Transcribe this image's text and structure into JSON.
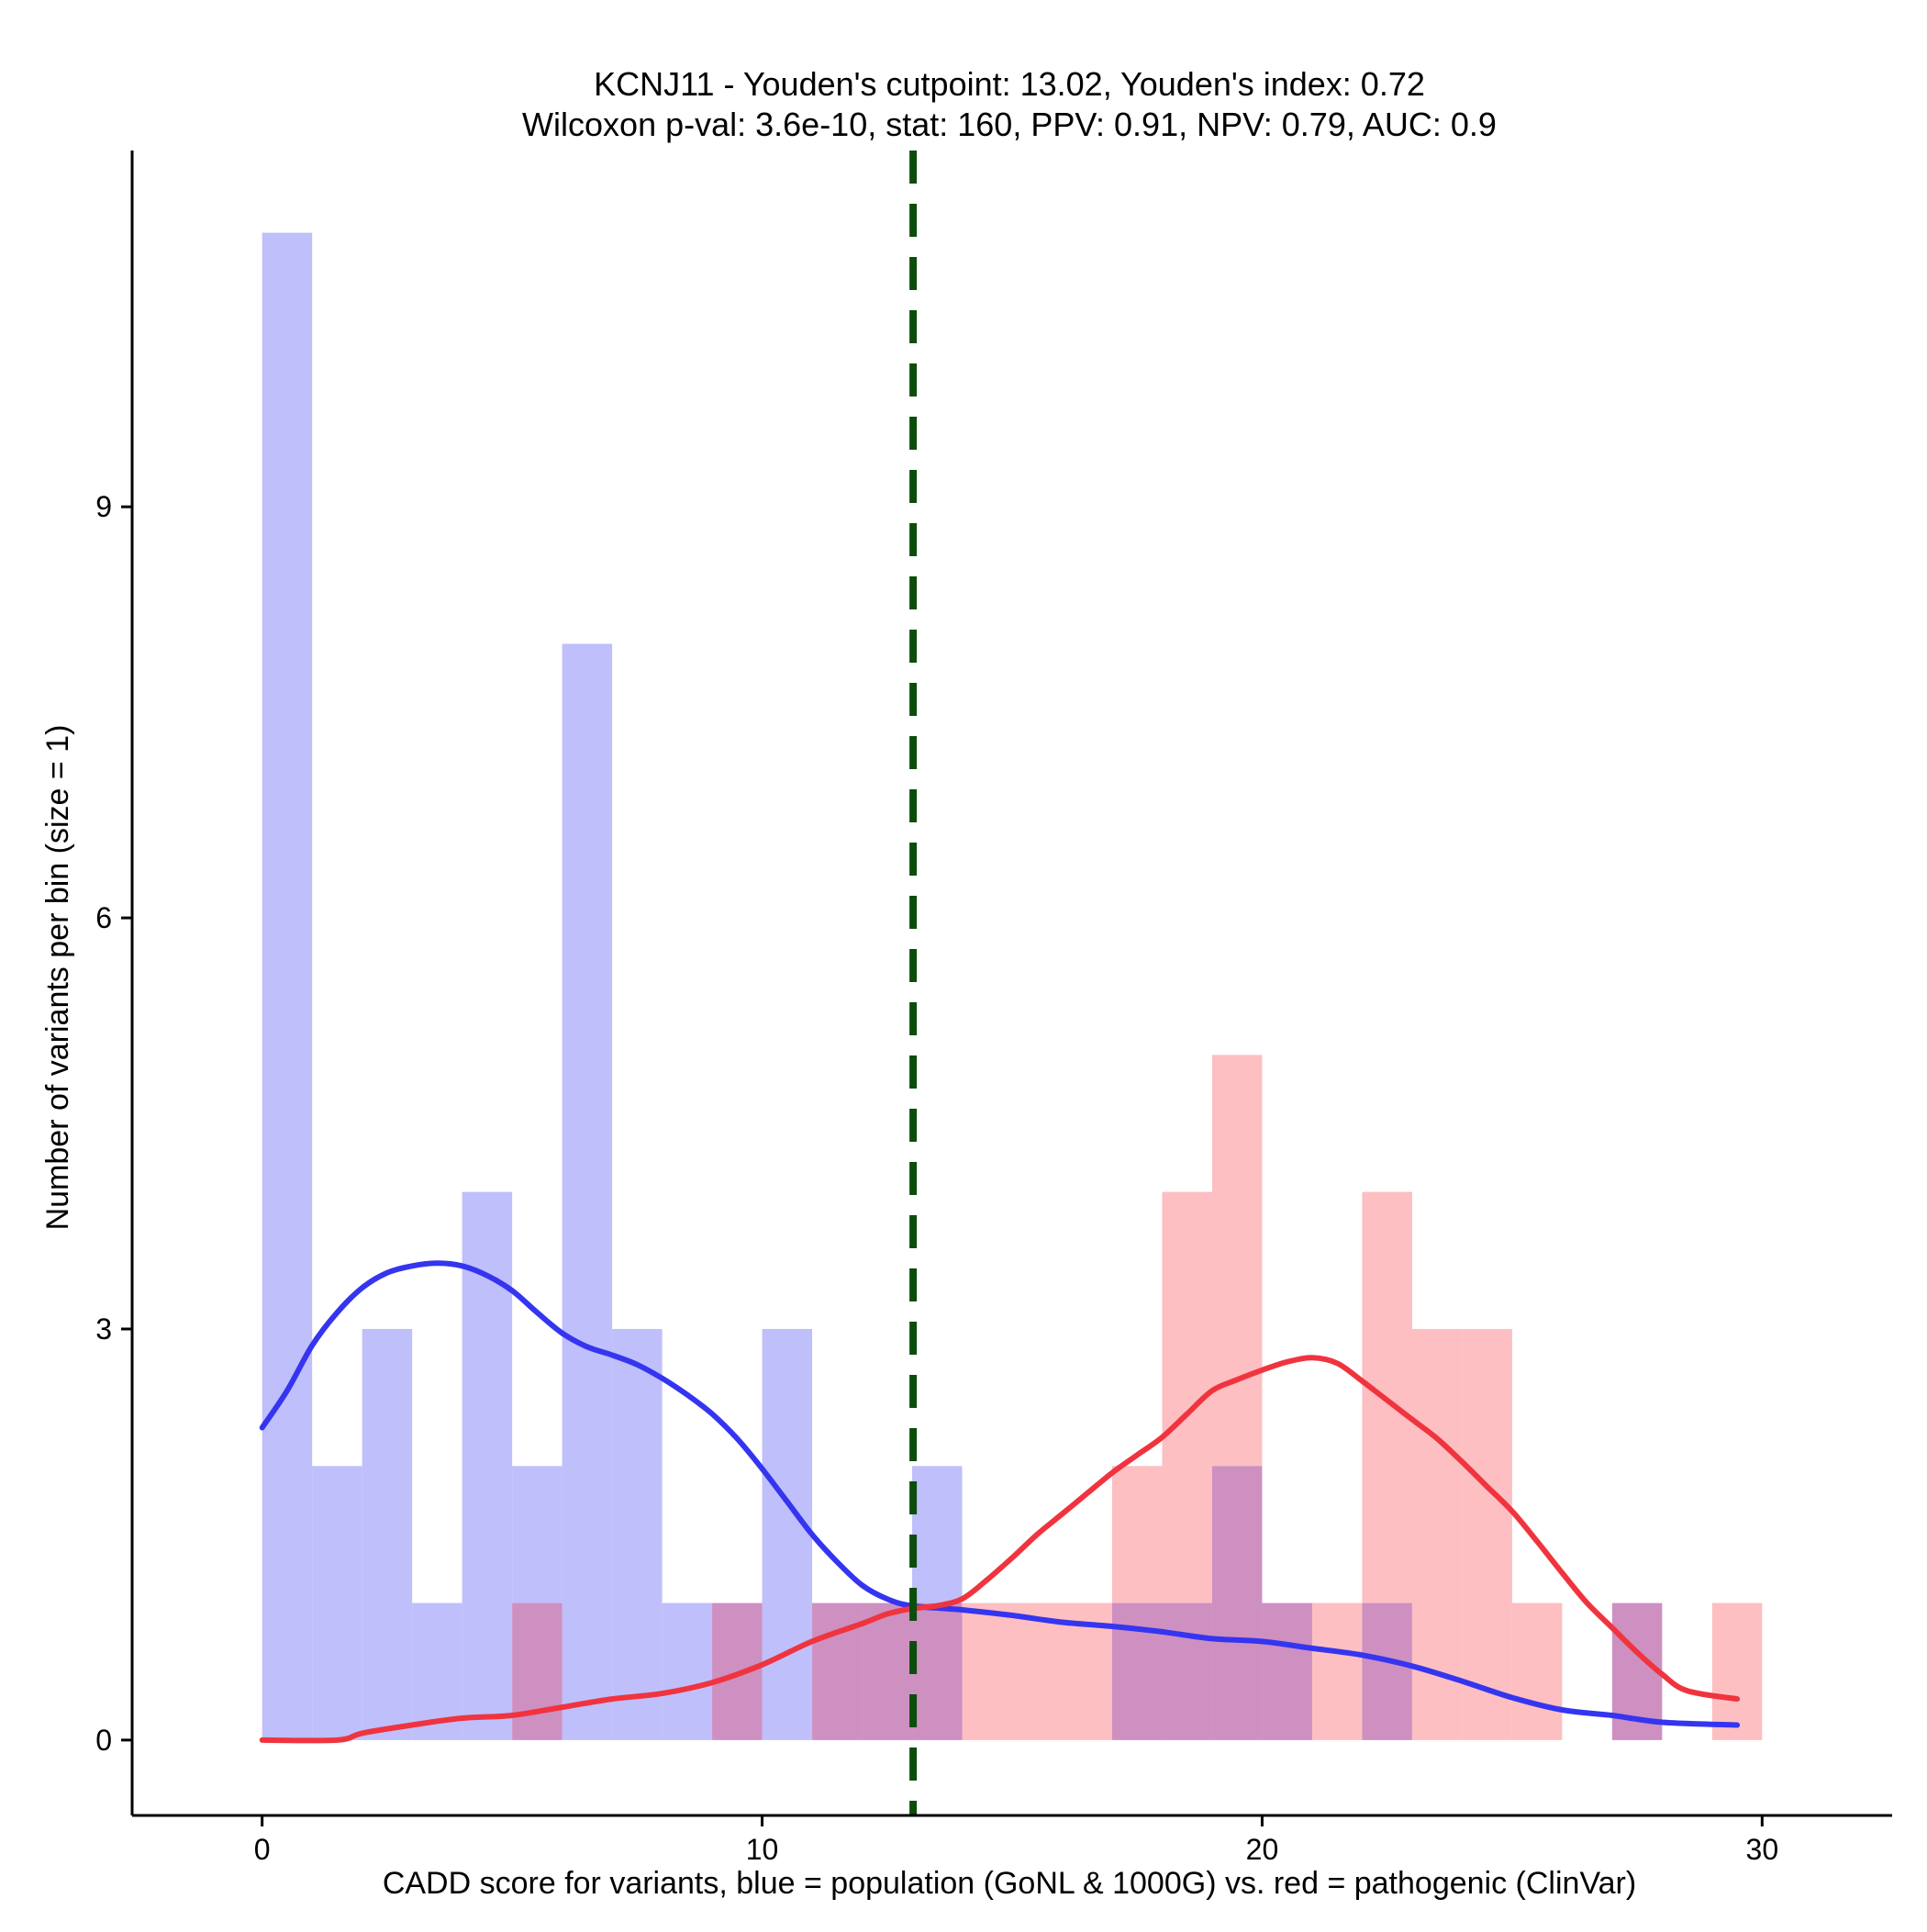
{
  "chart_data": {
    "type": "histogram",
    "title_line1": "KCNJ11 - Youden's cutpoint: 13.02, Youden's index: 0.72",
    "title_line2": "Wilcoxon p-val: 3.6e-10, stat: 160, PPV: 0.91, NPV: 0.79, AUC: 0.9",
    "xlabel": "CADD score for variants, blue = population (GoNL & 1000G) vs. red = pathogenic (ClinVar)",
    "ylabel": "Number of variants per bin (size = 1)",
    "xlim": [
      -2.6,
      32.6
    ],
    "ylim": [
      -0.55,
      11.6
    ],
    "xticks": [
      0,
      10,
      20,
      30
    ],
    "yticks": [
      0,
      3,
      6,
      9
    ],
    "bin_size": 1,
    "cutpoint": 13.02,
    "colors": {
      "population_bar": "#bfbffb",
      "pathogenic_bar": "#fdbfc1",
      "overlap_bar": "#cd90c1",
      "population_line": "#3535f0",
      "pathogenic_line": "#f0343f",
      "cutpoint_line": "#0b4d0b"
    },
    "series": [
      {
        "name": "population (GoNL & 1000G)",
        "bins": [
          [
            0,
            11
          ],
          [
            1,
            2
          ],
          [
            2,
            3
          ],
          [
            3,
            1
          ],
          [
            4,
            4
          ],
          [
            5,
            2
          ],
          [
            6,
            8
          ],
          [
            7,
            3
          ],
          [
            8,
            1
          ],
          [
            9,
            1
          ],
          [
            10,
            3
          ],
          [
            11,
            1
          ],
          [
            12,
            1
          ],
          [
            13,
            2
          ],
          [
            17,
            1
          ],
          [
            18,
            1
          ],
          [
            19,
            2
          ],
          [
            20,
            1
          ],
          [
            22,
            1
          ],
          [
            27,
            1
          ]
        ],
        "density": [
          [
            0,
            2.28
          ],
          [
            0.5,
            2.55
          ],
          [
            1,
            2.88
          ],
          [
            1.5,
            3.12
          ],
          [
            2,
            3.3
          ],
          [
            2.5,
            3.41
          ],
          [
            3,
            3.46
          ],
          [
            3.5,
            3.48
          ],
          [
            4,
            3.46
          ],
          [
            4.5,
            3.39
          ],
          [
            5,
            3.28
          ],
          [
            5.5,
            3.12
          ],
          [
            6,
            2.97
          ],
          [
            6.5,
            2.87
          ],
          [
            7,
            2.81
          ],
          [
            7.5,
            2.74
          ],
          [
            8,
            2.64
          ],
          [
            8.5,
            2.52
          ],
          [
            9,
            2.38
          ],
          [
            9.5,
            2.2
          ],
          [
            10,
            1.98
          ],
          [
            10.5,
            1.74
          ],
          [
            11,
            1.5
          ],
          [
            11.5,
            1.3
          ],
          [
            12,
            1.13
          ],
          [
            12.5,
            1.03
          ],
          [
            13,
            0.98
          ],
          [
            14,
            0.95
          ],
          [
            15,
            0.91
          ],
          [
            16,
            0.86
          ],
          [
            17,
            0.83
          ],
          [
            18,
            0.79
          ],
          [
            19,
            0.74
          ],
          [
            20,
            0.72
          ],
          [
            21,
            0.67
          ],
          [
            22,
            0.62
          ],
          [
            23,
            0.54
          ],
          [
            24,
            0.43
          ],
          [
            25,
            0.31
          ],
          [
            26,
            0.22
          ],
          [
            27,
            0.18
          ],
          [
            28,
            0.13
          ],
          [
            29.5,
            0.11
          ]
        ]
      },
      {
        "name": "pathogenic (ClinVar)",
        "bins": [
          [
            5,
            1
          ],
          [
            9,
            1
          ],
          [
            11,
            1
          ],
          [
            12,
            1
          ],
          [
            13,
            1
          ],
          [
            14,
            1
          ],
          [
            15,
            1
          ],
          [
            16,
            1
          ],
          [
            17,
            2
          ],
          [
            18,
            4
          ],
          [
            19,
            5
          ],
          [
            20,
            1
          ],
          [
            21,
            1
          ],
          [
            22,
            4
          ],
          [
            23,
            3
          ],
          [
            24,
            3
          ],
          [
            25,
            1
          ],
          [
            27,
            1
          ],
          [
            29,
            1
          ]
        ],
        "density": [
          [
            0,
            0.0
          ],
          [
            1.5,
            0.0
          ],
          [
            2,
            0.05
          ],
          [
            3,
            0.11
          ],
          [
            4,
            0.16
          ],
          [
            5,
            0.18
          ],
          [
            6,
            0.24
          ],
          [
            7,
            0.3
          ],
          [
            8,
            0.34
          ],
          [
            9,
            0.42
          ],
          [
            10,
            0.55
          ],
          [
            11,
            0.72
          ],
          [
            12,
            0.85
          ],
          [
            12.5,
            0.92
          ],
          [
            13,
            0.96
          ],
          [
            13.5,
            0.98
          ],
          [
            14,
            1.03
          ],
          [
            14.5,
            1.17
          ],
          [
            15,
            1.33
          ],
          [
            15.5,
            1.5
          ],
          [
            16,
            1.65
          ],
          [
            16.5,
            1.8
          ],
          [
            17,
            1.95
          ],
          [
            17.5,
            2.08
          ],
          [
            18,
            2.21
          ],
          [
            18.5,
            2.38
          ],
          [
            19,
            2.55
          ],
          [
            19.5,
            2.63
          ],
          [
            20,
            2.7
          ],
          [
            20.5,
            2.76
          ],
          [
            21,
            2.79
          ],
          [
            21.5,
            2.75
          ],
          [
            22,
            2.62
          ],
          [
            22.5,
            2.48
          ],
          [
            23,
            2.34
          ],
          [
            23.5,
            2.2
          ],
          [
            24,
            2.03
          ],
          [
            24.5,
            1.85
          ],
          [
            25,
            1.67
          ],
          [
            25.5,
            1.45
          ],
          [
            26,
            1.22
          ],
          [
            26.5,
            1.0
          ],
          [
            27,
            0.82
          ],
          [
            27.5,
            0.64
          ],
          [
            28,
            0.48
          ],
          [
            28.5,
            0.36
          ],
          [
            29.5,
            0.3
          ]
        ]
      }
    ]
  }
}
